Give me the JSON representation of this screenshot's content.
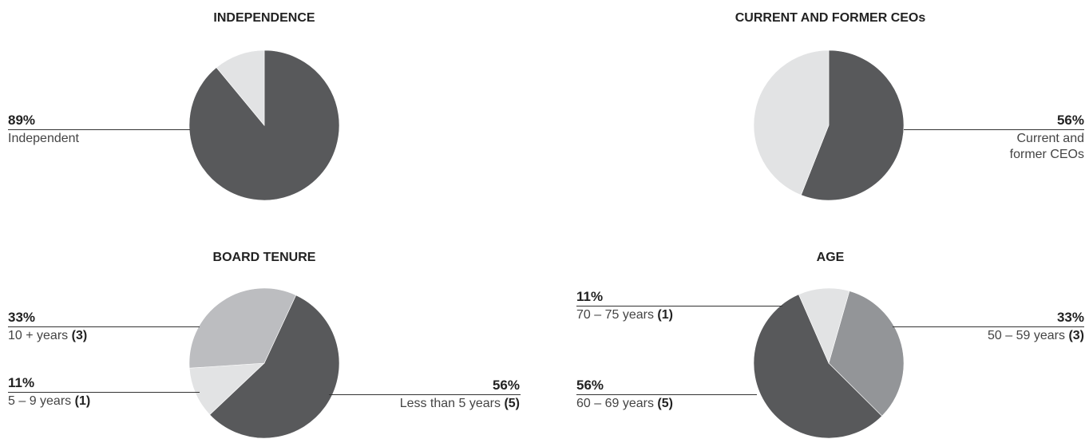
{
  "chart_data": [
    {
      "type": "pie",
      "title": "INDEPENDENCE",
      "slices": [
        {
          "label": "Independent",
          "percent": 89,
          "color": "#58595b"
        },
        {
          "label": "",
          "percent": 11,
          "color": "#e2e3e4"
        }
      ],
      "annotations": [
        {
          "percent_text": "89%",
          "desc": "Independent",
          "count": ""
        }
      ]
    },
    {
      "type": "pie",
      "title": "CURRENT AND FORMER CEOs",
      "slices": [
        {
          "label": "Current and former CEOs",
          "percent": 56,
          "color": "#58595b"
        },
        {
          "label": "",
          "percent": 44,
          "color": "#e2e3e4"
        }
      ],
      "annotations": [
        {
          "percent_text": "56%",
          "desc_lines": [
            "Current and",
            "former CEOs"
          ],
          "count": ""
        }
      ]
    },
    {
      "type": "pie",
      "title": "BOARD TENURE",
      "slices": [
        {
          "label": "Less than 5 years",
          "percent": 56,
          "color": "#58595b"
        },
        {
          "label": "5 – 9 years",
          "percent": 11,
          "color": "#e2e3e4"
        },
        {
          "label": "10 + years",
          "percent": 33,
          "color": "#bcbdc0"
        }
      ],
      "annotations": [
        {
          "percent_text": "33%",
          "desc": "10 + years ",
          "count": "(3)"
        },
        {
          "percent_text": "11%",
          "desc": "5 – 9 years ",
          "count": "(1)"
        },
        {
          "percent_text": "56%",
          "desc": "Less than 5 years ",
          "count": "(5)"
        }
      ]
    },
    {
      "type": "pie",
      "title": "AGE",
      "slices": [
        {
          "label": "50 – 59 years",
          "percent": 33,
          "color": "#939598"
        },
        {
          "label": "60 – 69 years",
          "percent": 56,
          "color": "#58595b"
        },
        {
          "label": "70 – 75 years",
          "percent": 11,
          "color": "#e2e3e4"
        }
      ],
      "annotations": [
        {
          "percent_text": "11%",
          "desc": "70 – 75 years ",
          "count": "(1)"
        },
        {
          "percent_text": "33%",
          "desc": "50 – 59 years ",
          "count": "(3)"
        },
        {
          "percent_text": "56%",
          "desc": "60 – 69 years ",
          "count": "(5)"
        }
      ]
    }
  ]
}
